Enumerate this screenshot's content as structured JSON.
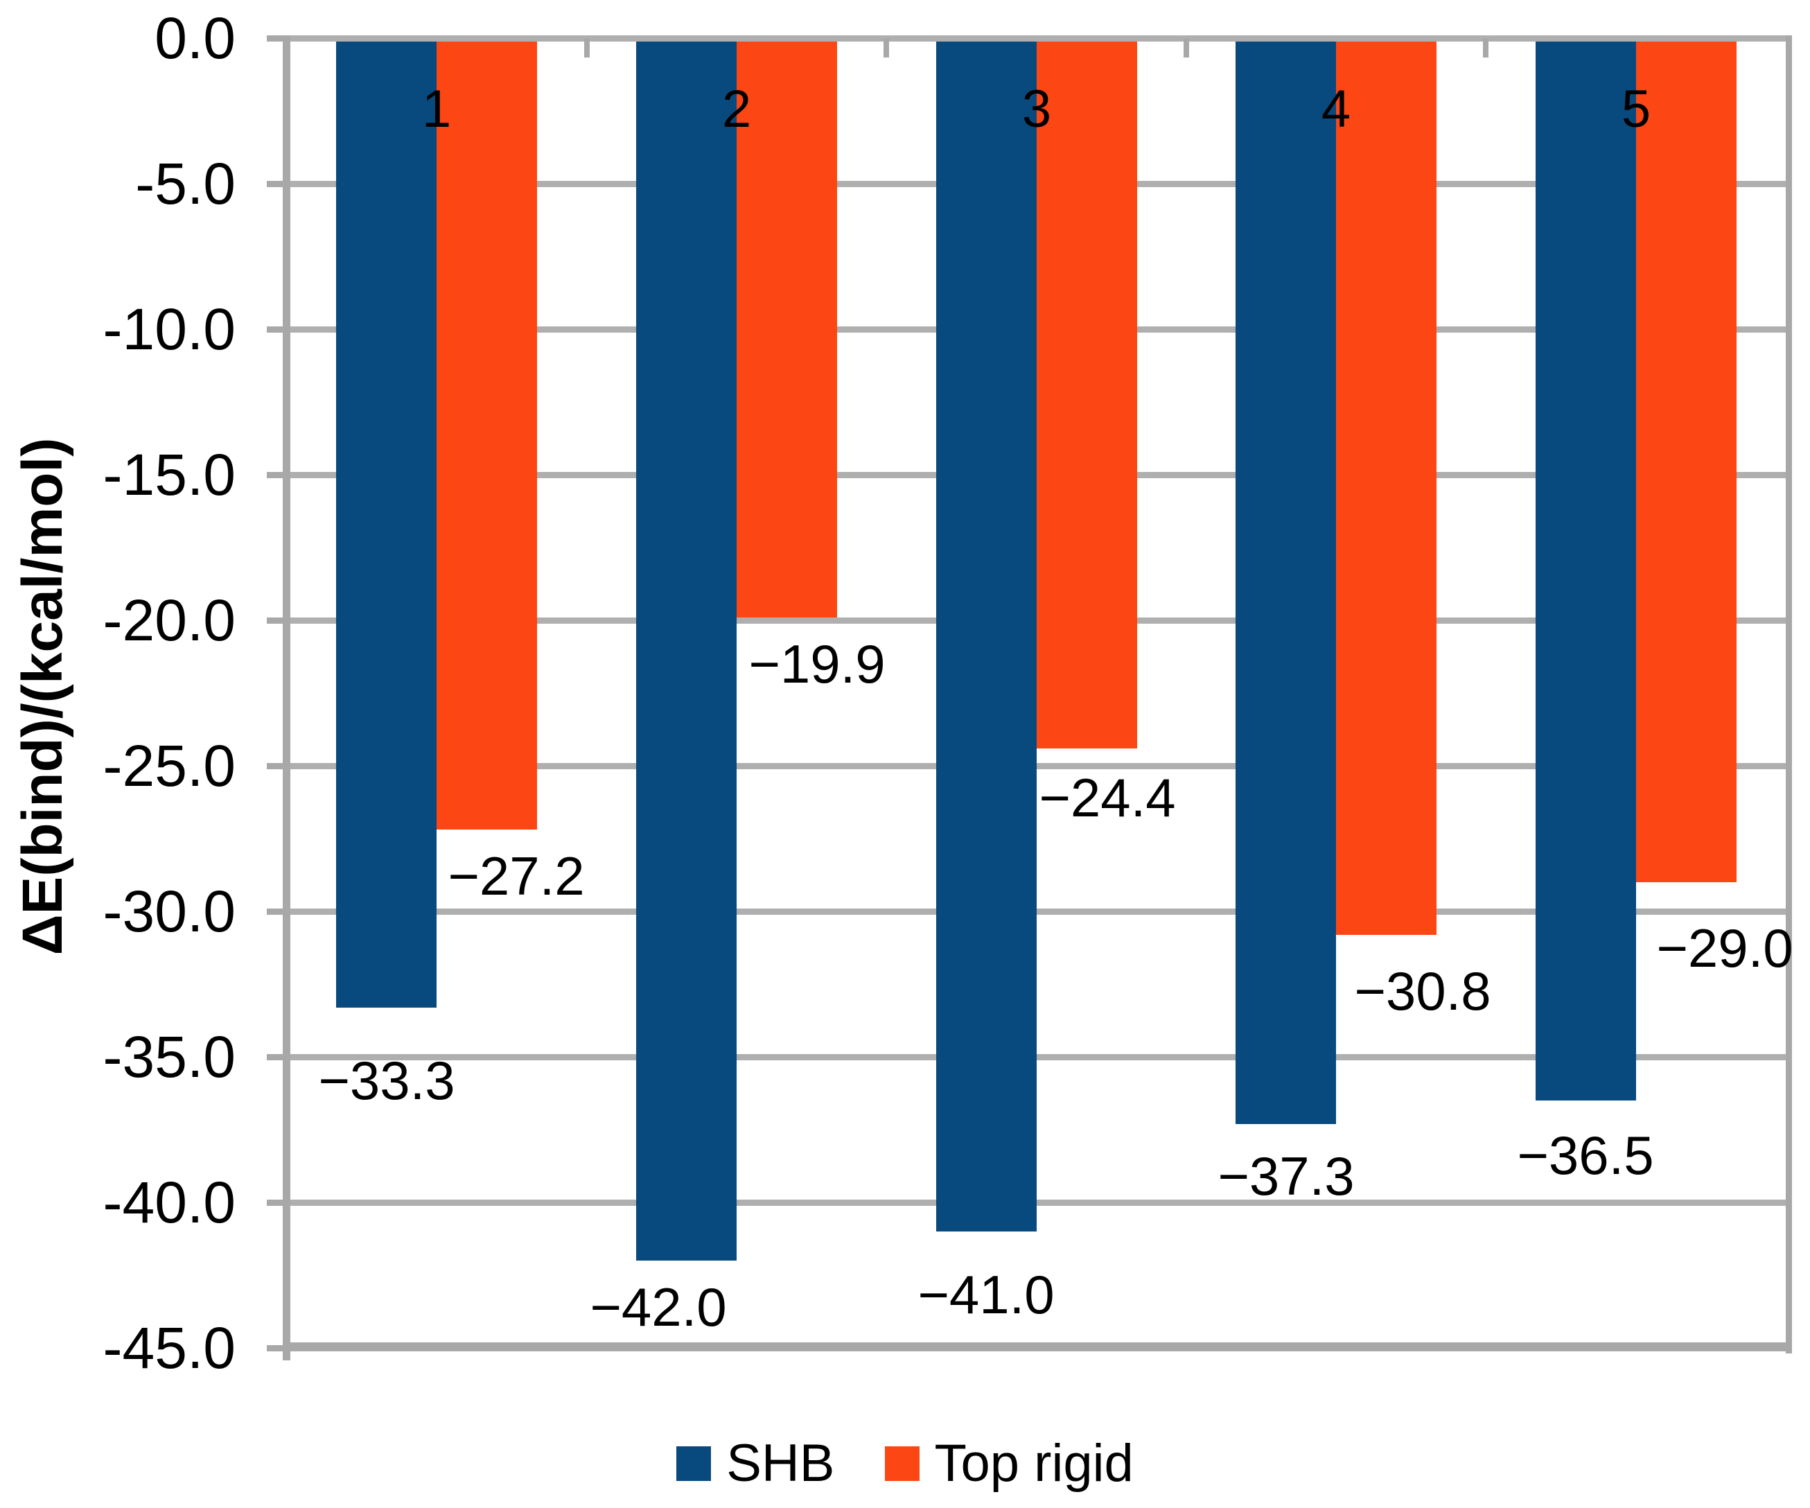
{
  "chart_data": {
    "type": "bar",
    "orientation": "column",
    "title": "",
    "categories": [
      "1",
      "2",
      "3",
      "4",
      "5"
    ],
    "series": [
      {
        "name": "SHB",
        "color": "#094A7E",
        "values": [
          -33.3,
          -42.0,
          -41.0,
          -37.3,
          -36.5
        ],
        "data_labels": [
          "−33.3",
          "−42.0",
          "−41.0",
          "−37.3",
          "−36.5"
        ]
      },
      {
        "name": "Top rigid",
        "color": "#FC4613",
        "values": [
          -27.2,
          -19.9,
          -24.4,
          -30.8,
          -29.0
        ],
        "data_labels": [
          "−27.2",
          "−19.9",
          "−24.4",
          "−30.8",
          "−29.0"
        ]
      }
    ],
    "xlabel": "",
    "ylabel": "ΔE(bind)/(kcal/mol)",
    "ylim": [
      -45,
      0
    ],
    "ytick_interval": 5,
    "ytick_labels": [
      "0.0",
      "-5.0",
      "-10.0",
      "-15.0",
      "-20.0",
      "-25.0",
      "-30.0",
      "-35.0",
      "-40.0",
      "-45.0"
    ],
    "grid": true,
    "legend_position": "bottom",
    "colors": {
      "gridline": "#AFAFAF",
      "axis": "#A8A8A8",
      "text": "#000000",
      "background": "#FFFFFF"
    }
  }
}
